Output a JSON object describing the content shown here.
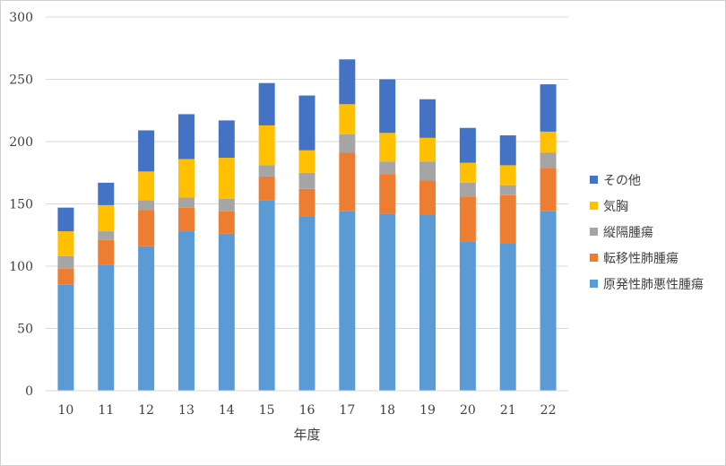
{
  "chart_data": {
    "type": "bar",
    "stacked": true,
    "title": "",
    "xlabel": "年度",
    "ylabel": "",
    "ylim": [
      0,
      300
    ],
    "yticks": [
      0,
      50,
      100,
      150,
      200,
      250,
      300
    ],
    "grid": true,
    "legend_position": "right",
    "categories": [
      "10",
      "11",
      "12",
      "13",
      "14",
      "15",
      "16",
      "17",
      "18",
      "19",
      "20",
      "21",
      "22"
    ],
    "series": [
      {
        "name": "原発性肺悪性腫瘍",
        "color": "#5b9bd5",
        "values": [
          85,
          101,
          116,
          128,
          126,
          153,
          140,
          144,
          142,
          141,
          120,
          118,
          144
        ]
      },
      {
        "name": "転移性肺腫瘍",
        "color": "#ed7d31",
        "values": [
          13,
          20,
          29,
          19,
          18,
          19,
          22,
          47,
          32,
          28,
          36,
          39,
          35
        ]
      },
      {
        "name": "縦隔腫瘍",
        "color": "#a5a5a5",
        "values": [
          10,
          7,
          8,
          8,
          10,
          9,
          13,
          15,
          10,
          15,
          11,
          8,
          12
        ]
      },
      {
        "name": "気胸",
        "color": "#ffc000",
        "values": [
          20,
          21,
          23,
          31,
          33,
          32,
          18,
          24,
          23,
          19,
          16,
          16,
          17
        ]
      },
      {
        "name": "その他",
        "color": "#4472c4",
        "values": [
          19,
          18,
          33,
          36,
          30,
          34,
          44,
          36,
          43,
          31,
          28,
          24,
          38
        ]
      }
    ]
  }
}
